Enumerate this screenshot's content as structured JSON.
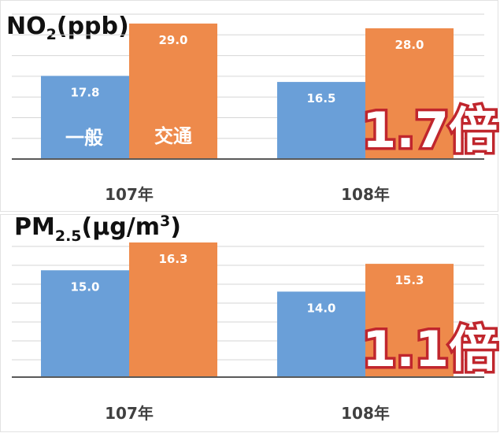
{
  "chart_data": [
    {
      "type": "bar",
      "title_main": "NO",
      "title_sub": "2",
      "title_tail": "(ppb)",
      "categories": [
        "107年",
        "108年"
      ],
      "series": [
        {
          "name": "一般",
          "values": [
            17.8,
            16.5
          ],
          "labels": [
            "17.8",
            "16.5"
          ]
        },
        {
          "name": "交通",
          "values": [
            29.0,
            28.0
          ],
          "labels": [
            "29.0",
            "28.0"
          ]
        }
      ],
      "ratio_label": "1.7倍",
      "ylim": [
        0,
        30
      ],
      "grid": true
    },
    {
      "type": "bar",
      "title_main": "PM",
      "title_sub": "2.5",
      "title_tail": "(μg/m",
      "title_sup": "3",
      "title_close": ")",
      "categories": [
        "107年",
        "108年"
      ],
      "series": [
        {
          "values": [
            15.0,
            14.0
          ],
          "labels": [
            "15.0",
            "14.0"
          ]
        },
        {
          "values": [
            16.3,
            15.3
          ],
          "labels": [
            "16.3",
            "15.3"
          ]
        }
      ],
      "ratio_label": "1.1倍",
      "ylim": [
        10,
        17
      ],
      "grid": true
    }
  ],
  "colors": {
    "general": "#6a9fd8",
    "traffic": "#ee8a4b",
    "grid": "#d6d6d6",
    "axis": "#595959",
    "ratio_stroke": "#c0262d"
  }
}
